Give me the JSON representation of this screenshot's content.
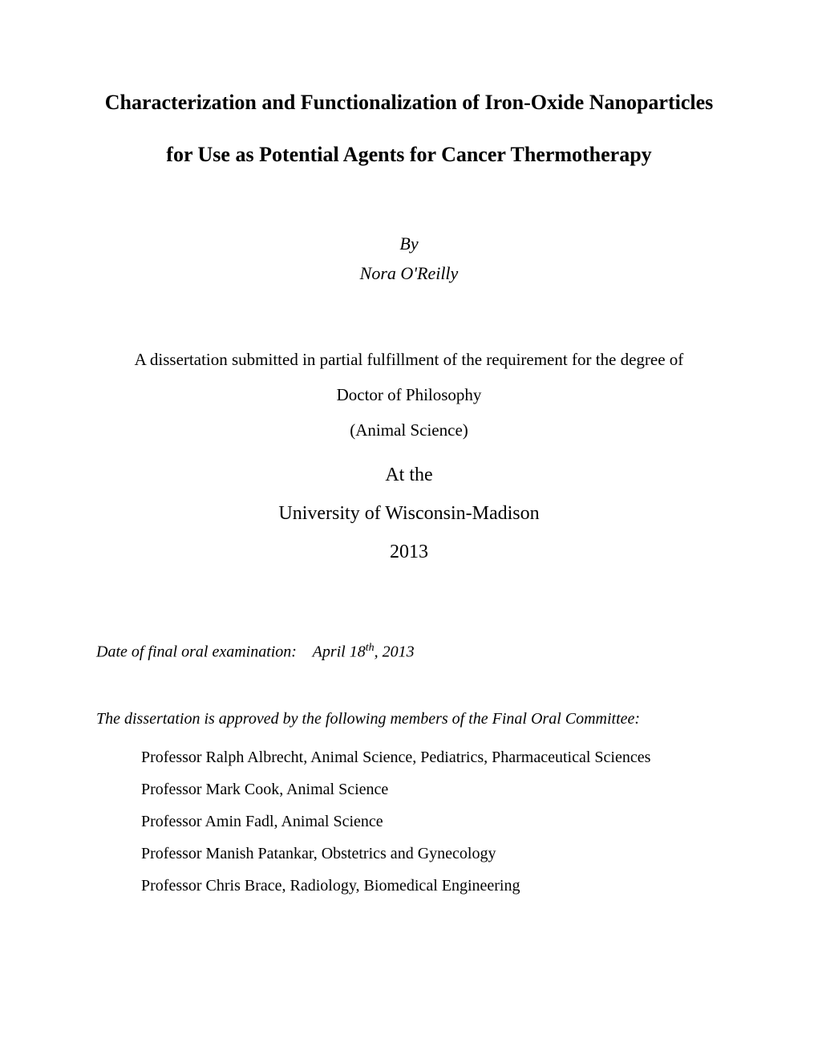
{
  "title_line1": "Characterization and Functionalization of Iron-Oxide Nanoparticles",
  "title_line2": "for Use as Potential Agents for Cancer Thermotherapy",
  "by_label": "By",
  "author": "Nora O'Reilly",
  "submission_line1": "A dissertation submitted in partial fulfillment of the requirement for the degree of",
  "submission_line2": "Doctor of Philosophy",
  "submission_line3": "(Animal Science)",
  "at_label": "At the",
  "university": "University of Wisconsin-Madison",
  "year": "2013",
  "exam_date_label": "Date of final oral examination:",
  "exam_date_prefix": "April 18",
  "exam_date_sup": "th",
  "exam_date_suffix": ", 2013",
  "approved_text": "The dissertation is approved by the following members of the Final Oral Committee:",
  "committee": [
    "Professor Ralph Albrecht, Animal Science, Pediatrics, Pharmaceutical Sciences",
    "Professor Mark Cook, Animal Science",
    "Professor Amin Fadl, Animal Science",
    "Professor Manish Patankar, Obstetrics and Gynecology",
    "Professor Chris Brace, Radiology, Biomedical Engineering"
  ]
}
